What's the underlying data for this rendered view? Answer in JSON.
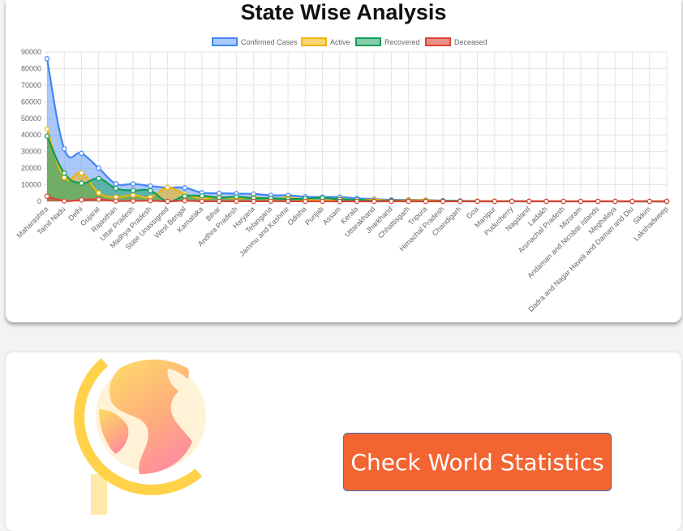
{
  "chart_data": {
    "type": "line",
    "title": "State Wise Analysis",
    "legend_position": "top",
    "grid": true,
    "ylim": [
      0,
      90000
    ],
    "yticks": [
      0,
      10000,
      20000,
      30000,
      40000,
      50000,
      60000,
      70000,
      80000,
      90000
    ],
    "categories": [
      "Maharashtra",
      "Tamil Nadu",
      "Delhi",
      "Gujarat",
      "Rajasthan",
      "Uttar Pradesh",
      "Madhya Pradesh",
      "State Unassigned",
      "West Bengal",
      "Karnataka",
      "Bihar",
      "Andhra Pradesh",
      "Haryana",
      "Telangana",
      "Jammu and Kashmir",
      "Odisha",
      "Punjab",
      "Assam",
      "Kerala",
      "Uttarakhand",
      "Jharkhand",
      "Chhattisgarh",
      "Tripura",
      "Himachal Pradesh",
      "Chandigarh",
      "Goa",
      "Manipur",
      "Puducherry",
      "Nagaland",
      "Ladakh",
      "Arunachal Pradesh",
      "Mizoram",
      "Andaman and Nicobar Islands",
      "Meghalaya",
      "Dadra and Nagar Haveli and Daman and Diu",
      "Sikkim",
      "Lakshadweep"
    ],
    "series": [
      {
        "name": "Confirmed Cases",
        "color": "#4285f4",
        "fill": "rgba(66,133,244,0.45)",
        "values": [
          85975,
          31667,
          28936,
          20070,
          10599,
          10536,
          9228,
          8325,
          8187,
          5213,
          4915,
          4659,
          4448,
          3650,
          3621,
          2781,
          2608,
          2565,
          1807,
          1355,
          889,
          923,
          834,
          470,
          317,
          166,
          157,
          102,
          80,
          103,
          48,
          34,
          33,
          36,
          3,
          2,
          0
        ]
      },
      {
        "name": "Active",
        "color": "#f4b400",
        "fill": "rgba(244,180,0,0.55)",
        "values": [
          43591,
          14396,
          17125,
          5047,
          2509,
          3752,
          2417,
          8325,
          4385,
          1870,
          2574,
          1877,
          2424,
          1640,
          2164,
          1126,
          388,
          1423,
          781,
          1037,
          457,
          701,
          669,
          176,
          129,
          119,
          154,
          50,
          80,
          54,
          40,
          33,
          0,
          22,
          1,
          2,
          0
        ]
      },
      {
        "name": "Recovered",
        "color": "#0f9d58",
        "fill": "rgba(15,157,88,0.5)",
        "values": [
          39314,
          17001,
          10958,
          13769,
          7821,
          6554,
          6415,
          0,
          3196,
          3287,
          2326,
          2703,
          1960,
          1894,
          1411,
          1646,
          2180,
          1138,
          1024,
          313,
          428,
          220,
          165,
          285,
          183,
          47,
          3,
          52,
          0,
          49,
          8,
          1,
          33,
          13,
          2,
          0,
          0
        ]
      },
      {
        "name": "Deceased",
        "color": "#db4437",
        "fill": "rgba(219,68,55,0.6)",
        "values": [
          3060,
          269,
          853,
          1249,
          240,
          275,
          396,
          0,
          396,
          59,
          29,
          79,
          25,
          113,
          46,
          9,
          41,
          4,
          2,
          5,
          6,
          2,
          0,
          6,
          5,
          0,
          0,
          0,
          0,
          0,
          0,
          0,
          0,
          1,
          0,
          0,
          0
        ]
      }
    ]
  },
  "world_card": {
    "button_label": "Check World Statistics",
    "globe_icon": "globe-icon"
  }
}
